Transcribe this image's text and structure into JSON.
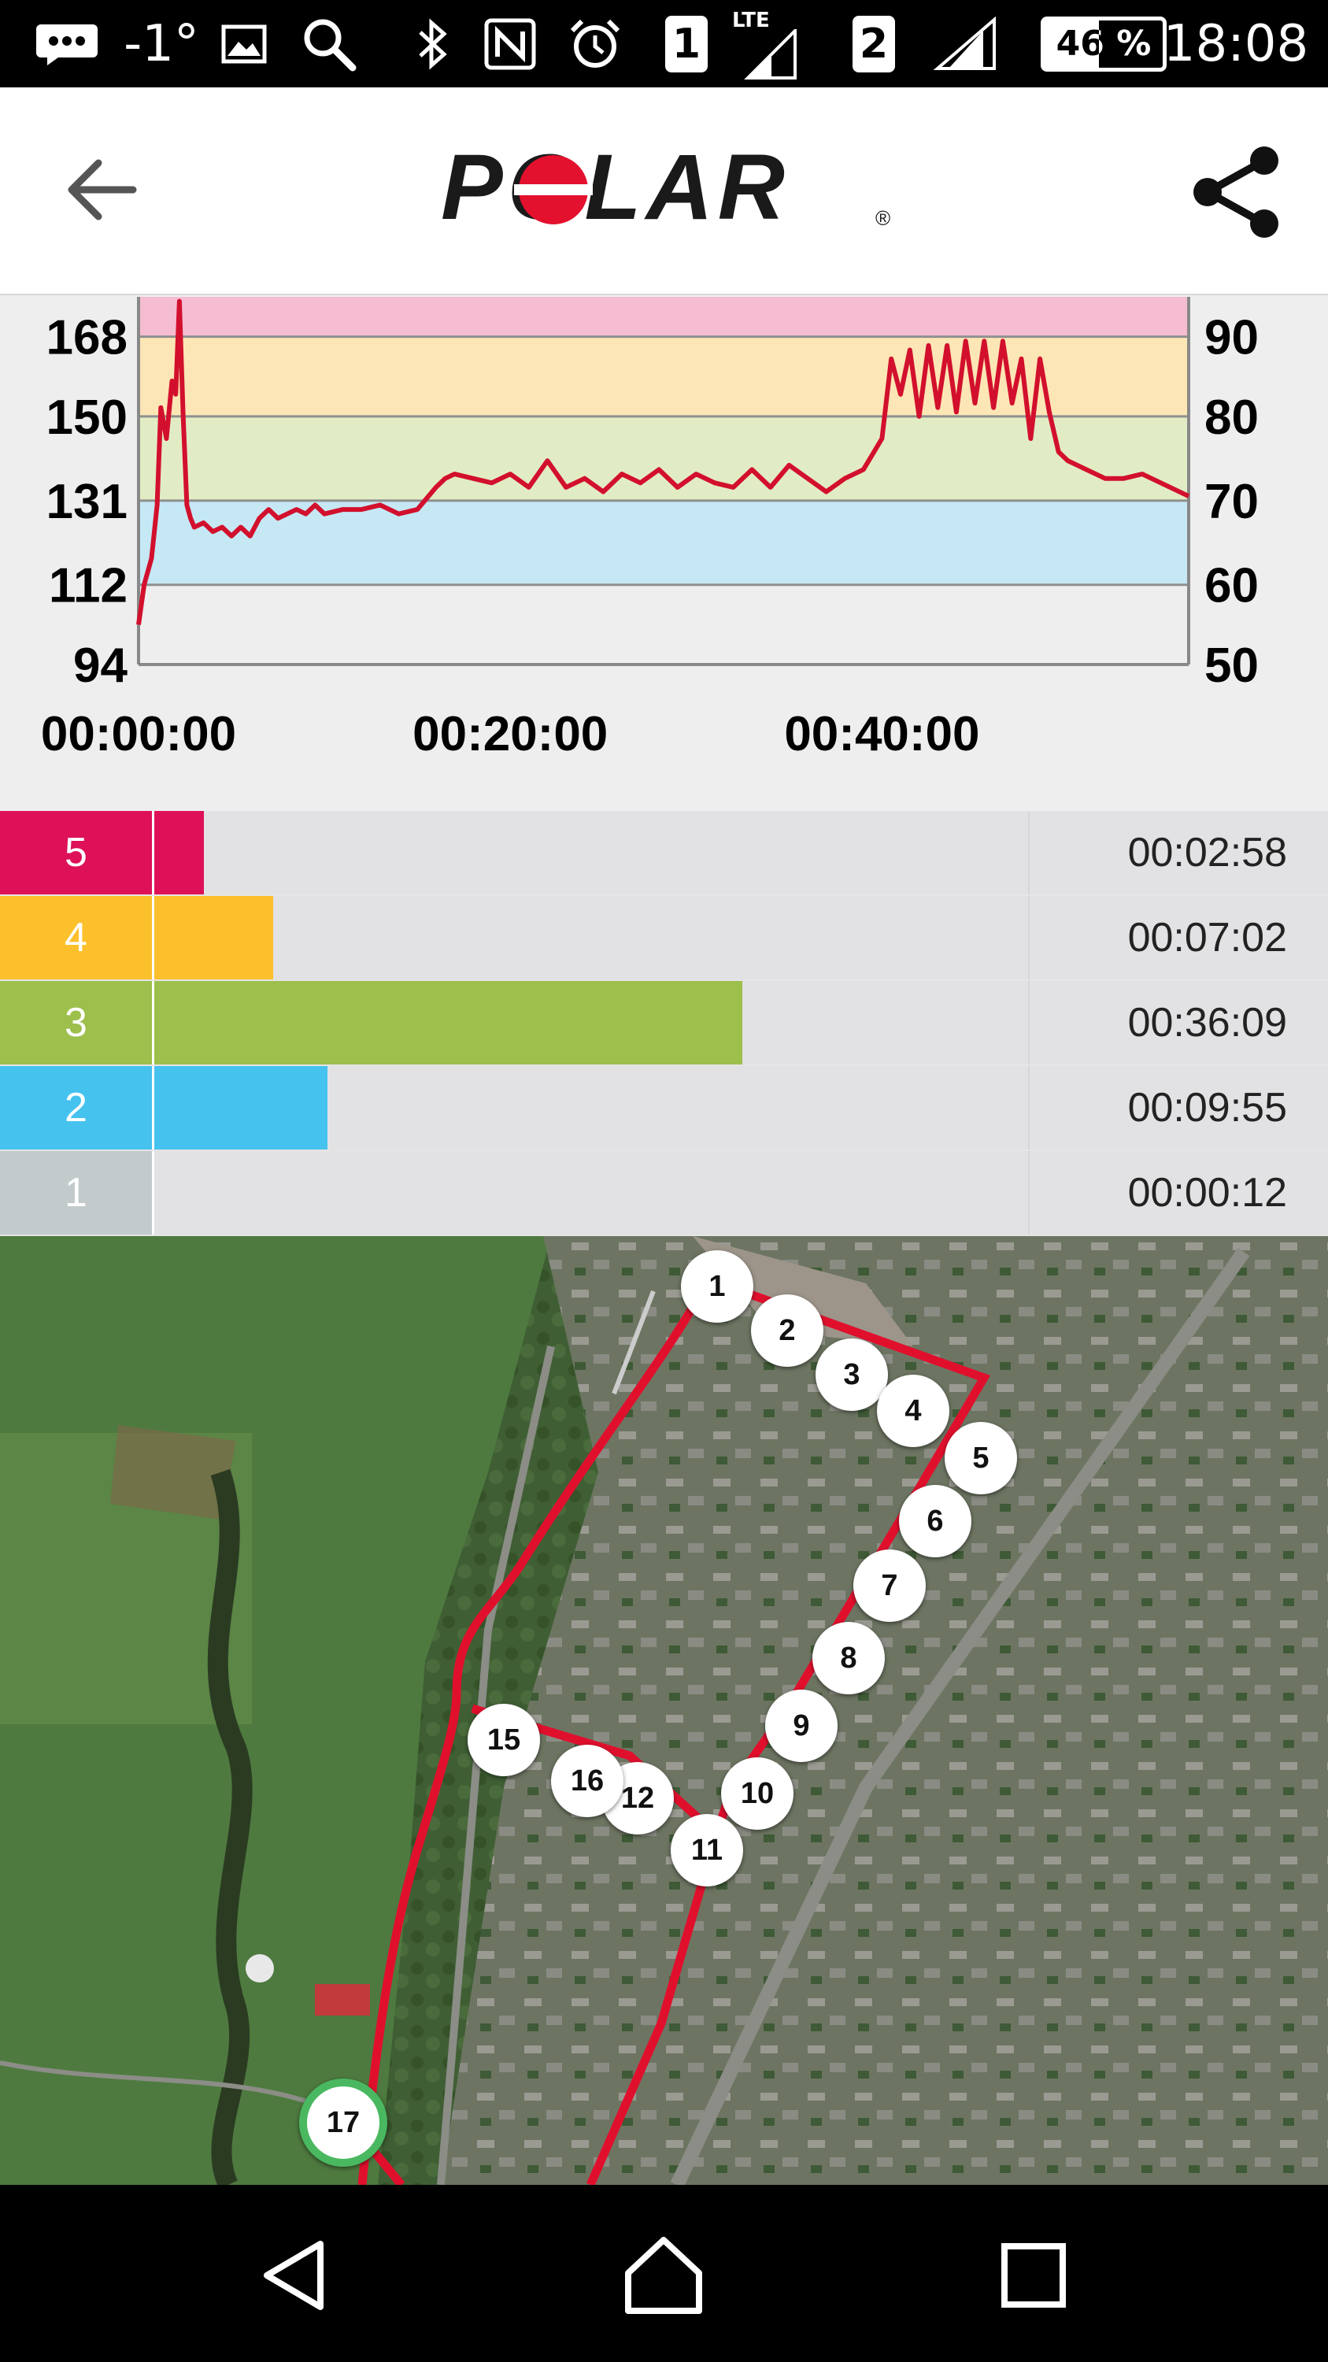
{
  "status_bar": {
    "temperature": "-1°",
    "sim1": "1",
    "network": "LTE",
    "sim2": "2",
    "battery": "46 %",
    "time": "18:08"
  },
  "header": {
    "brand": "POLAR",
    "registered_mark": "®"
  },
  "chart_data": {
    "type": "line",
    "title": "",
    "xlabel": "",
    "ylabel": "",
    "x_ticks": [
      "00:00:00",
      "00:20:00",
      "00:40:00"
    ],
    "y_left_ticks": [
      "168",
      "150",
      "131",
      "112",
      "94"
    ],
    "y_right_ticks": [
      "90",
      "80",
      "70",
      "60",
      "50"
    ],
    "y_left_range": [
      94,
      177
    ],
    "x_range_minutes": [
      0,
      56.5
    ],
    "zone_bands": [
      {
        "zone": "5",
        "from": 168,
        "to": 177,
        "color": "#f5bcd2"
      },
      {
        "zone": "4",
        "from": 150,
        "to": 168,
        "color": "#fce6b5"
      },
      {
        "zone": "3",
        "from": 131,
        "to": 150,
        "color": "#e2ecc4"
      },
      {
        "zone": "2",
        "from": 112,
        "to": 131,
        "color": "#c6e8f5"
      },
      {
        "zone": "1",
        "from": 94,
        "to": 112,
        "color": "#eeeeee"
      }
    ],
    "series": [
      {
        "color": "#d2102d",
        "x": [
          0,
          0.3,
          0.7,
          1.0,
          1.2,
          1.5,
          1.8,
          2.0,
          2.2,
          2.4,
          2.6,
          2.8,
          3.0,
          3.5,
          4,
          4.5,
          5,
          5.5,
          6,
          6.5,
          7,
          7.5,
          8,
          8.5,
          9,
          9.5,
          10,
          11,
          12,
          13,
          14,
          15,
          16,
          16.5,
          17,
          18,
          19,
          20,
          21,
          22,
          23,
          24,
          25,
          26,
          27,
          28,
          29,
          30,
          31,
          32,
          33,
          34,
          35,
          36,
          37,
          38,
          39,
          40,
          40.5,
          41,
          41.5,
          42,
          42.5,
          43,
          43.5,
          44,
          44.5,
          45,
          45.5,
          46,
          46.5,
          47,
          47.5,
          48,
          48.5,
          49,
          49.5,
          50,
          51,
          52,
          53,
          54,
          55,
          56.5
        ],
        "y": [
          103,
          112,
          118,
          130,
          152,
          145,
          158,
          155,
          176,
          150,
          130,
          127,
          125,
          126,
          124,
          125,
          123,
          125,
          123,
          127,
          129,
          127,
          128,
          129,
          128,
          130,
          128,
          129,
          129,
          130,
          128,
          129,
          134,
          136,
          137,
          136,
          135,
          137,
          134,
          140,
          134,
          136,
          133,
          137,
          135,
          138,
          134,
          137,
          135,
          134,
          138,
          134,
          139,
          136,
          133,
          136,
          138,
          145,
          163,
          155,
          165,
          150,
          166,
          152,
          166,
          151,
          167,
          153,
          167,
          152,
          167,
          153,
          163,
          145,
          163,
          151,
          142,
          140,
          138,
          136,
          136,
          137,
          135,
          132
        ]
      }
    ],
    "grid": true,
    "legend": "none"
  },
  "zones": [
    {
      "label": "5",
      "color": "#dd1058",
      "fill_fraction": 0.057,
      "time": "00:02:58"
    },
    {
      "label": "4",
      "color": "#fcc02c",
      "fill_fraction": 0.136,
      "time": "00:07:02"
    },
    {
      "label": "3",
      "color": "#9dbf4b",
      "fill_fraction": 0.673,
      "time": "00:36:09"
    },
    {
      "label": "2",
      "color": "#46c2ee",
      "fill_fraction": 0.198,
      "time": "00:09:55"
    },
    {
      "label": "1",
      "color": "#c3cacb",
      "fill_fraction": 0.0,
      "time": "00:00:12"
    }
  ],
  "map": {
    "route_color": "#e0102d",
    "laps": [
      "1",
      "2",
      "3",
      "4",
      "5",
      "6",
      "7",
      "8",
      "9",
      "10",
      "11",
      "12",
      "15",
      "16",
      "17"
    ]
  },
  "icons": {
    "back": "arrow-left-icon",
    "share": "share-icon",
    "nav_back": "triangle-back-icon",
    "nav_home": "home-icon",
    "nav_recent": "square-recent-icon"
  }
}
